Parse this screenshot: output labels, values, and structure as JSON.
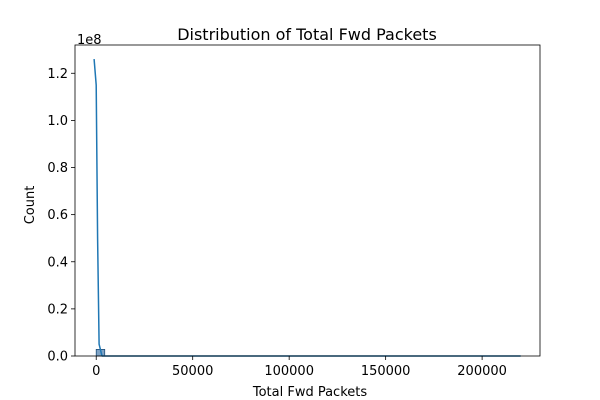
{
  "chart_data": {
    "type": "bar",
    "title": "Distribution of  Total Fwd Packets",
    "xlabel": "Total Fwd Packets",
    "ylabel": "Count",
    "y_offset_label": "1e8",
    "xlim": [
      -11000,
      230000
    ],
    "ylim": [
      0,
      1.32
    ],
    "x_ticks": [
      0,
      50000,
      100000,
      150000,
      200000
    ],
    "x_tick_labels": [
      "0",
      "50000",
      "100000",
      "150000",
      "200000"
    ],
    "y_ticks": [
      0.0,
      0.2,
      0.4,
      0.6,
      0.8,
      1.0,
      1.2
    ],
    "y_tick_labels": [
      "0.0",
      "0.2",
      "0.4",
      "0.6",
      "0.8",
      "1.0",
      "1.2"
    ],
    "grid": false,
    "histogram": {
      "bin_edges": [
        0,
        4400
      ],
      "counts": [
        0.028
      ]
    },
    "kde": {
      "x": [
        -1100,
        0,
        700,
        1500,
        3000,
        220000
      ],
      "y": [
        1.26,
        1.15,
        0.5,
        0.05,
        0.0,
        0.0
      ]
    },
    "colors": {
      "bar_fill": "#7fa3c5",
      "bar_edge": "#1f4e79",
      "kde_line": "#1f77b4",
      "axis": "#000000"
    }
  }
}
